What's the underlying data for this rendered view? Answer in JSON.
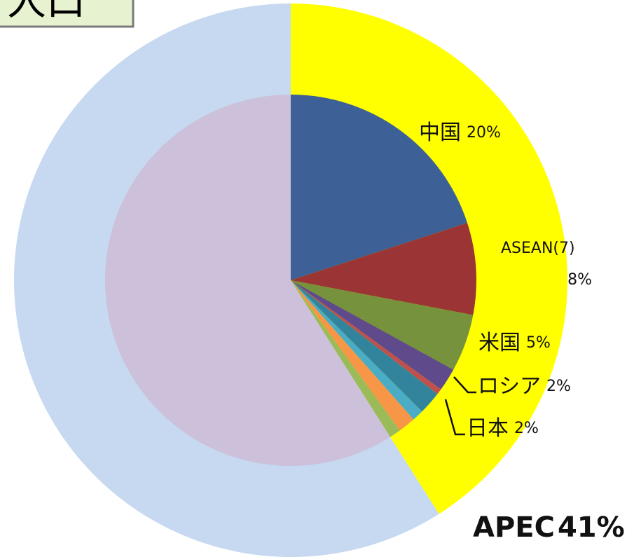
{
  "chart_data": [
    {
      "type": "pie",
      "title": "人口",
      "categories": [
        "APEC",
        null
      ],
      "values": [
        41,
        59
      ],
      "value_labels": [
        "41%",
        null
      ],
      "colors": [
        "#ffff00",
        "#c6d9f0"
      ]
    },
    {
      "type": "pie",
      "categories": [
        "中国",
        "ASEAN(7)",
        "米国",
        "ロシア",
        null,
        "日本",
        null,
        null,
        null,
        null
      ],
      "values": [
        20,
        8,
        5,
        2,
        0.5,
        2,
        1,
        1.5,
        1,
        59
      ],
      "value_labels": [
        "20%",
        "8%",
        "5%",
        "2%",
        null,
        "2%",
        null,
        null,
        null,
        null
      ],
      "colors": [
        "#3d6096",
        "#9b3535",
        "#76923c",
        "#5f4b8b",
        "#c0504d",
        "#31849b",
        "#4bacc6",
        "#f79646",
        "#9bbb59",
        "#ccc0da"
      ]
    }
  ]
}
